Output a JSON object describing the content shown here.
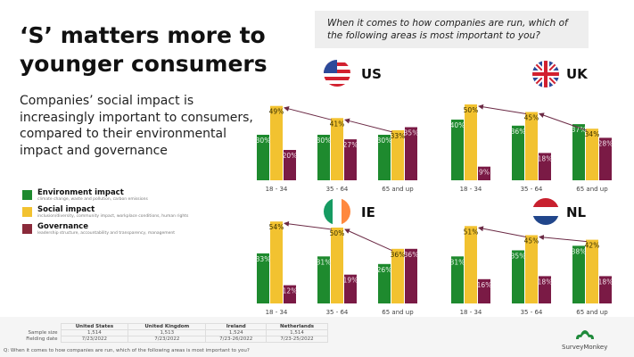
{
  "title": "‘S’ matters more to younger consumers",
  "subtitle": "Companies’ social impact is increasingly important to consumers, compared to their environmental impact and governance",
  "question_box": "When it comes to how companies are run, which of the following areas is most important to you?",
  "legend": [
    {
      "label": "Environment impact",
      "desc": "climate change, waste and pollution, carbon emissions",
      "color": "#1e8a2e"
    },
    {
      "label": "Social impact",
      "desc": "inclusion/diversity, community impact, workplace conditions, human rights",
      "color": "#f2c230"
    },
    {
      "label": "Governance",
      "desc": "leadership structure, accountability and transparency, management",
      "color": "#7a1a45"
    }
  ],
  "chart_data": [
    {
      "type": "bar",
      "country": "US",
      "flag": "us-flag",
      "categories": [
        "18 - 34",
        "35 - 64",
        "65 and up"
      ],
      "series": [
        {
          "name": "Environment impact",
          "values": [
            30,
            30,
            30
          ]
        },
        {
          "name": "Social impact",
          "values": [
            49,
            41,
            33
          ]
        },
        {
          "name": "Governance",
          "values": [
            20,
            27,
            35
          ]
        }
      ]
    },
    {
      "type": "bar",
      "country": "UK",
      "flag": "uk-flag",
      "categories": [
        "18 - 34",
        "35 - 64",
        "65 and up"
      ],
      "series": [
        {
          "name": "Environment impact",
          "values": [
            40,
            36,
            37
          ]
        },
        {
          "name": "Social impact",
          "values": [
            50,
            45,
            34
          ]
        },
        {
          "name": "Governance",
          "values": [
            9,
            18,
            28
          ]
        }
      ]
    },
    {
      "type": "bar",
      "country": "IE",
      "flag": "ireland-flag",
      "categories": [
        "18 - 34",
        "35 - 64",
        "65 and up"
      ],
      "series": [
        {
          "name": "Environment impact",
          "values": [
            33,
            31,
            26
          ]
        },
        {
          "name": "Social impact",
          "values": [
            54,
            50,
            36
          ]
        },
        {
          "name": "Governance",
          "values": [
            12,
            19,
            36
          ]
        }
      ]
    },
    {
      "type": "bar",
      "country": "NL",
      "flag": "netherlands-flag",
      "categories": [
        "18 - 34",
        "35 - 64",
        "65 and up"
      ],
      "series": [
        {
          "name": "Environment impact",
          "values": [
            31,
            35,
            38
          ]
        },
        {
          "name": "Social impact",
          "values": [
            51,
            45,
            42
          ]
        },
        {
          "name": "Governance",
          "values": [
            16,
            18,
            18
          ]
        }
      ]
    }
  ],
  "table": {
    "headers": [
      "United States",
      "United Kingdom",
      "Ireland",
      "Netherlands"
    ],
    "rows": [
      {
        "label": "Sample size",
        "values": [
          "1,514",
          "1,513",
          "1,524",
          "1,514"
        ]
      },
      {
        "label": "Fielding date",
        "values": [
          "7/23/2022",
          "7/23/2022",
          "7/23-26/2022",
          "7/23-25/2022"
        ]
      }
    ],
    "note": "Q: When it comes to how companies are run, which of the following areas is most important to you?"
  },
  "logo": "SurveyMonkey"
}
